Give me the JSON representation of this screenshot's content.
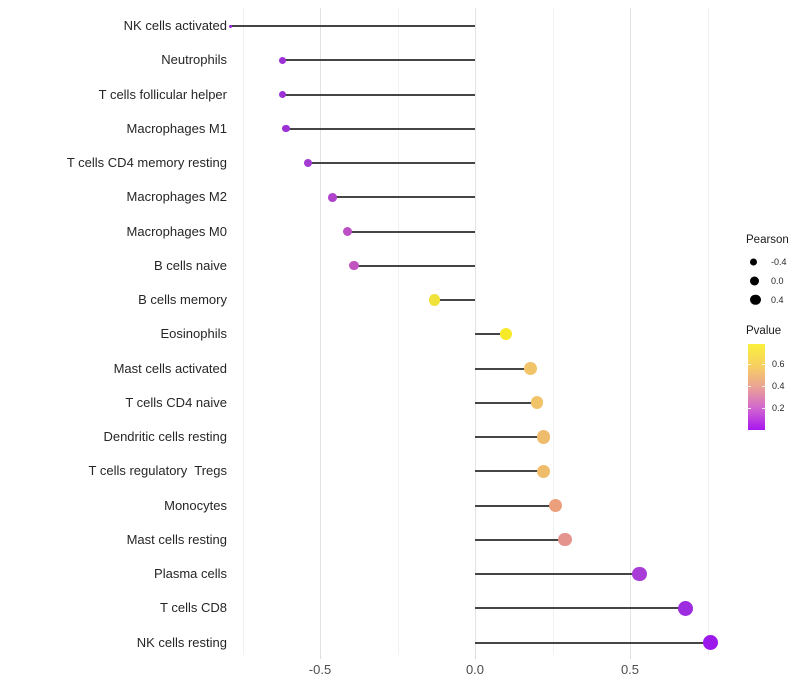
{
  "chart_data": {
    "type": "scatter",
    "subtype": "horizontal-lollipop",
    "title": "",
    "xlabel": "",
    "ylabel": "",
    "categories": [
      "NK cells activated",
      "Neutrophils",
      "T cells follicular helper",
      "Macrophages M1",
      "T cells CD4 memory resting",
      "Macrophages M2",
      "Macrophages M0",
      "B cells naive",
      "B cells memory",
      "Eosinophils",
      "Mast cells activated",
      "T cells CD4 naive",
      "Dendritic cells resting",
      "T cells regulatory  Tregs",
      "Monocytes",
      "Mast cells resting",
      "Plasma cells",
      "T cells CD8",
      "NK cells resting"
    ],
    "series": [
      {
        "name": "Pearson",
        "values": [
          -0.79,
          -0.62,
          -0.62,
          -0.61,
          -0.54,
          -0.46,
          -0.41,
          -0.39,
          -0.13,
          0.1,
          0.18,
          0.2,
          0.22,
          0.22,
          0.26,
          0.29,
          0.53,
          0.68,
          0.76
        ]
      },
      {
        "name": "Pvalue",
        "values": [
          0.02,
          0.06,
          0.06,
          0.06,
          0.09,
          0.14,
          0.2,
          0.22,
          0.67,
          0.73,
          0.57,
          0.57,
          0.55,
          0.55,
          0.47,
          0.42,
          0.1,
          0.05,
          0.03
        ]
      }
    ],
    "point_colors": [
      "#A125DE",
      "#9C32D6",
      "#9C32D6",
      "#9C32D6",
      "#A43BD2",
      "#B044CC",
      "#BC4EC6",
      "#C254C0",
      "#EFE23B",
      "#F6EA28",
      "#F1C46A",
      "#F1C46A",
      "#EFBC6B",
      "#EFBC6B",
      "#EB9F7B",
      "#E5938D",
      "#A93CD6",
      "#9D2BDF",
      "#9B19EA"
    ],
    "xlim": [
      -0.85,
      0.8
    ],
    "x_ticks": [
      {
        "label": "-0.5",
        "value": -0.5
      },
      {
        "label": "0.0",
        "value": 0.0
      },
      {
        "label": "0.5",
        "value": 0.5
      }
    ],
    "x_gridlines_major": [
      -0.5,
      0.0,
      0.5
    ],
    "x_gridlines_minor": [
      -0.75,
      -0.25,
      0.25,
      0.75
    ],
    "grid": "vertical-only",
    "legend_position": "right"
  },
  "legends": {
    "pearson": {
      "title": "Pearson",
      "items": [
        {
          "label": "-0.4",
          "diameter": 7
        },
        {
          "label": "0.0",
          "diameter": 9
        },
        {
          "label": "0.4",
          "diameter": 10.5
        }
      ]
    },
    "pvalue": {
      "title": "Pvalue",
      "ticks": [
        {
          "label": "0.6",
          "value": 0.6
        },
        {
          "label": "0.4",
          "value": 0.4
        },
        {
          "label": "0.2",
          "value": 0.2
        }
      ],
      "scale_max": 0.78,
      "gradient_top_to_bottom": [
        "#FBF03C",
        "#F7D060",
        "#EAA295",
        "#D166CF",
        "#A816F0"
      ]
    }
  },
  "colors": {
    "stem": "#454545",
    "grid_major": "#e3e3e3",
    "grid_minor": "#f1f1f1",
    "axis_text": "#4d4d4d",
    "label_text": "#262626"
  }
}
